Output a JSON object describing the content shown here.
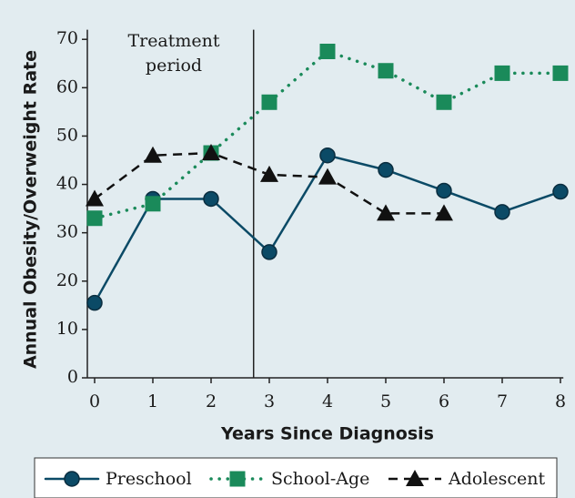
{
  "chart_data": {
    "type": "line",
    "x_label": "Years Since Diagnosis",
    "y_label": "Annual Obesity/Overweight Rate",
    "annotation": "Treatment period",
    "annotation_x": 2.73,
    "x": [
      0,
      1,
      2,
      3,
      4,
      5,
      6,
      7,
      8
    ],
    "xlim": [
      -0.125,
      8.05
    ],
    "xticks": [
      0,
      1,
      2,
      3,
      4,
      5,
      6,
      7,
      8
    ],
    "ylim": [
      0,
      72
    ],
    "yticks": [
      0,
      10,
      20,
      30,
      40,
      50,
      60,
      70
    ],
    "series": [
      {
        "name": "Preschool",
        "color": "#0b4a66",
        "marker": "circle",
        "dash": "solid",
        "values": [
          15.5,
          37,
          37,
          26,
          46,
          43,
          38.7,
          34.3,
          38.5
        ]
      },
      {
        "name": "School-Age",
        "color": "#1a8a5a",
        "marker": "square",
        "dash": "dotted",
        "values": [
          33,
          36,
          46.5,
          57,
          67.5,
          63.5,
          57,
          63,
          63
        ]
      },
      {
        "name": "Adolescent",
        "color": "#111111",
        "marker": "triangle",
        "dash": "dashed",
        "values": [
          37,
          46,
          46.5,
          42,
          41.5,
          34,
          34,
          null,
          null
        ]
      }
    ]
  }
}
